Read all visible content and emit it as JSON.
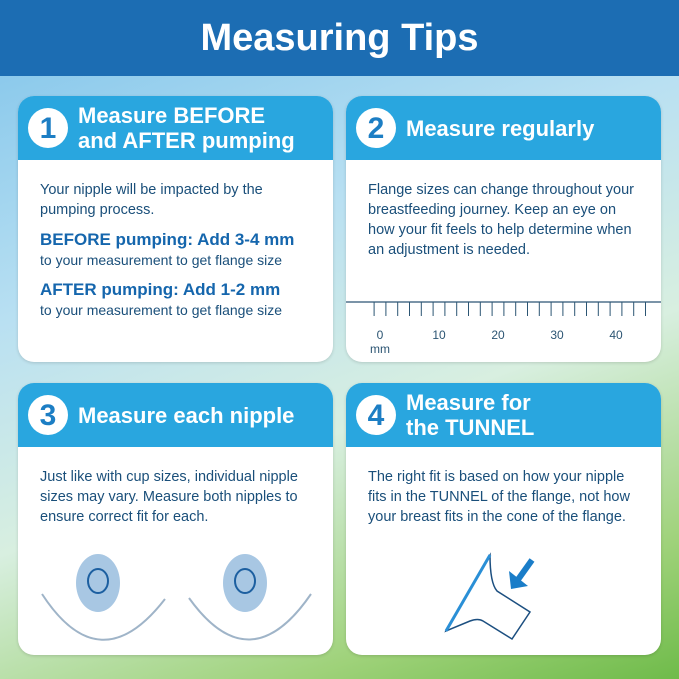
{
  "title": "Measuring Tips",
  "colors": {
    "header": "#1c6db3",
    "card_header": "#29a6df",
    "text": "#1a4f7a"
  },
  "cards": [
    {
      "number": "1",
      "title_line1": "Measure BEFORE",
      "title_line2": "and AFTER pumping",
      "intro": "Your nipple will be impacted by the pumping process.",
      "before_label": "BEFORE pumping: Add 3-4 mm",
      "before_note": "to your measurement to get flange size",
      "after_label": "AFTER pumping: Add 1-2 mm",
      "after_note": "to your measurement to get flange size"
    },
    {
      "number": "2",
      "title": "Measure regularly",
      "body": "Flange sizes can change throughout your breastfeeding journey. Keep an eye on how your fit feels to help determine when an adjustment is needed.",
      "ruler": {
        "labels": [
          "0",
          "10",
          "20",
          "30",
          "40"
        ],
        "unit": "mm"
      }
    },
    {
      "number": "3",
      "title": "Measure each nipple",
      "body": "Just like with cup sizes, individual nipple sizes may vary. Measure both nipples to ensure correct fit for each."
    },
    {
      "number": "4",
      "title_line1": "Measure for",
      "title_line2": "the TUNNEL",
      "body": "The right fit is based on how your nipple fits in the TUNNEL of the flange, not how your breast fits in the cone of the flange."
    }
  ]
}
